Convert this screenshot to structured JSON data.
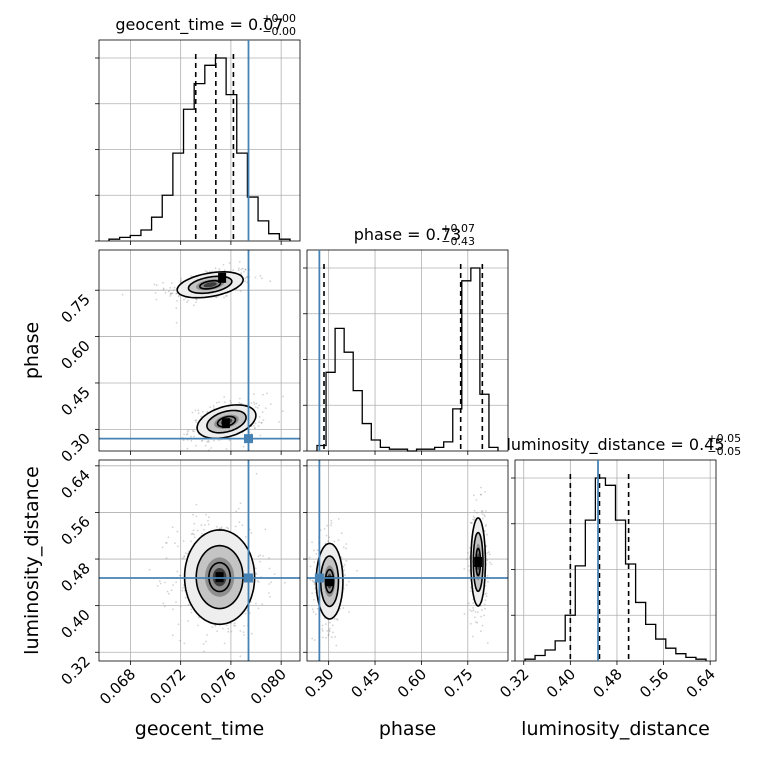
{
  "chart_data": {
    "type": "scatter",
    "style": {
      "truth_color": "#4682b4",
      "line_color": "#000000",
      "grid_color": "#b0b0b0",
      "point_color": "#808080"
    },
    "parameters": [
      {
        "name": "geocent_time",
        "axis_label": "geocent_time",
        "title": {
          "main": "geocent_time = 0.07",
          "sup": "+0.00",
          "sub": "−0.00"
        },
        "range": [
          0.0655,
          0.0815
        ],
        "ticks": [
          0.068,
          0.072,
          0.076,
          0.08
        ],
        "tick_labels": [
          "0.068",
          "0.072",
          "0.076",
          "0.080"
        ],
        "quantiles": [
          0.0732,
          0.0748,
          0.0762
        ],
        "truth": 0.0774,
        "hist_counts": [
          1,
          2,
          3,
          6,
          13,
          25,
          48,
          72,
          86,
          96,
          100,
          80,
          48,
          24,
          11,
          4,
          1
        ]
      },
      {
        "name": "phase",
        "axis_label": "phase",
        "title": {
          "main": "phase = 0.73",
          "sup": "+0.07",
          "sub": "−0.43"
        },
        "range": [
          0.23,
          0.88
        ],
        "ticks": [
          0.3,
          0.45,
          0.6,
          0.75
        ],
        "tick_labels": [
          "0.30",
          "0.45",
          "0.60",
          "0.75"
        ],
        "quantiles": [
          0.285,
          0.727,
          0.797
        ],
        "truth": 0.27,
        "hist_counts": [
          3,
          43,
          67,
          54,
          33,
          15,
          6,
          2,
          1,
          1,
          0,
          1,
          1,
          2,
          5,
          23,
          93,
          100,
          31,
          2
        ]
      },
      {
        "name": "luminosity_distance",
        "axis_label": "luminosity_distance",
        "title": {
          "main": "luminosity_distance = 0.45",
          "sup": "+0.05",
          "sub": "−0.05"
        },
        "range": [
          0.305,
          0.65
        ],
        "ticks": [
          0.32,
          0.4,
          0.48,
          0.56,
          0.64
        ],
        "tick_labels": [
          "0.32",
          "0.40",
          "0.48",
          "0.56",
          "0.64"
        ],
        "quantiles": [
          0.4,
          0.45,
          0.5
        ],
        "truth": 0.4475,
        "hist_counts": [
          1,
          3,
          6,
          11,
          25,
          52,
          77,
          100,
          96,
          77,
          53,
          32,
          20,
          12,
          7,
          4,
          2,
          1
        ]
      }
    ],
    "pairs": [
      {
        "x": "geocent_time",
        "y": "phase",
        "clusters": [
          {
            "center": [
              0.07435,
              0.7675
            ],
            "sd": [
              0.0015,
              0.022
            ],
            "slope": 6.3,
            "contour_radii": [
              0.55,
              1.15,
              1.75
            ],
            "count": 320,
            "peak": [
              0.0753,
              0.79
            ]
          },
          {
            "center": [
              0.07565,
              0.325
            ],
            "sd": [
              0.0013,
              0.028
            ],
            "slope": 8.5,
            "contour_radii": [
              0.55,
              1.2,
              1.8
            ],
            "count": 300,
            "peak": [
              0.0756,
              0.32
            ]
          }
        ]
      },
      {
        "x": "geocent_time",
        "y": "luminosity_distance",
        "clusters": [
          {
            "center": [
              0.0751,
              0.449
            ],
            "sd": [
              0.00155,
              0.045
            ],
            "slope": 0,
            "contour_radii": [
              0.55,
              1.2,
              1.8
            ],
            "count": 520,
            "peak": [
              0.0751,
              0.449
            ]
          }
        ]
      },
      {
        "x": "phase",
        "y": "luminosity_distance",
        "clusters": [
          {
            "center": [
              0.303,
              0.442
            ],
            "sd": [
              0.024,
              0.036
            ],
            "slope": 0,
            "contour_radii": [
              0.55,
              1.2,
              1.8
            ],
            "count": 280,
            "peak": [
              0.303,
              0.442
            ]
          },
          {
            "center": [
              0.7835,
              0.475
            ],
            "sd": [
              0.013,
              0.042
            ],
            "slope": 0,
            "contour_radii": [
              0.55,
              1.2,
              1.8
            ],
            "count": 300,
            "peak": [
              0.7835,
              0.475
            ]
          }
        ]
      }
    ]
  }
}
